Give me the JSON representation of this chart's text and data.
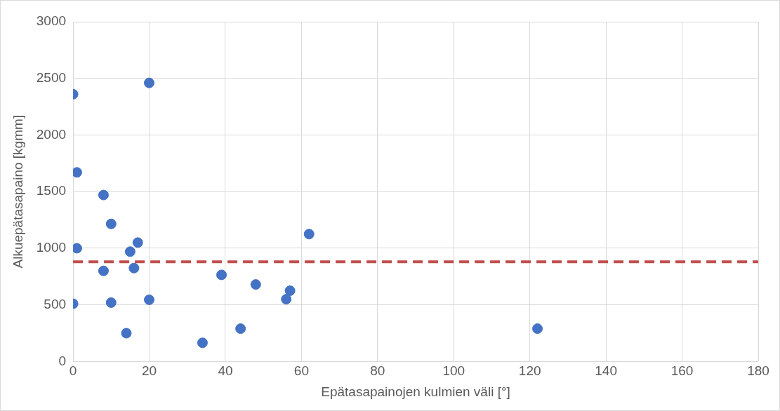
{
  "chart_data": {
    "type": "scatter",
    "xlabel": "Epätasapainojen kulmien väli [°]",
    "ylabel": "Alkuepätasapaino [kgmm]",
    "x": [
      0,
      1,
      1,
      0,
      8,
      8,
      10,
      10,
      14,
      15,
      16,
      17,
      20,
      20,
      34,
      39,
      44,
      48,
      56,
      57,
      62,
      122
    ],
    "series": [
      {
        "color": "#4472c4",
        "values": [
          2360,
          1670,
          1000,
          510,
          1470,
          800,
          1215,
          520,
          250,
          970,
          825,
          1050,
          2460,
          545,
          165,
          765,
          290,
          680,
          550,
          625,
          1125,
          290
        ]
      }
    ],
    "xlim": [
      0,
      180
    ],
    "xticks": [
      0,
      20,
      40,
      60,
      80,
      100,
      120,
      140,
      160,
      180
    ],
    "ylim": [
      0,
      3000
    ],
    "yticks": [
      0,
      500,
      1000,
      1500,
      2000,
      2500,
      3000
    ],
    "ref_lines": [
      {
        "axis": "y",
        "value": 880,
        "color": "#c0504d",
        "line_style": "dashed"
      }
    ],
    "grid": true,
    "legend": false,
    "marker": "circle"
  }
}
